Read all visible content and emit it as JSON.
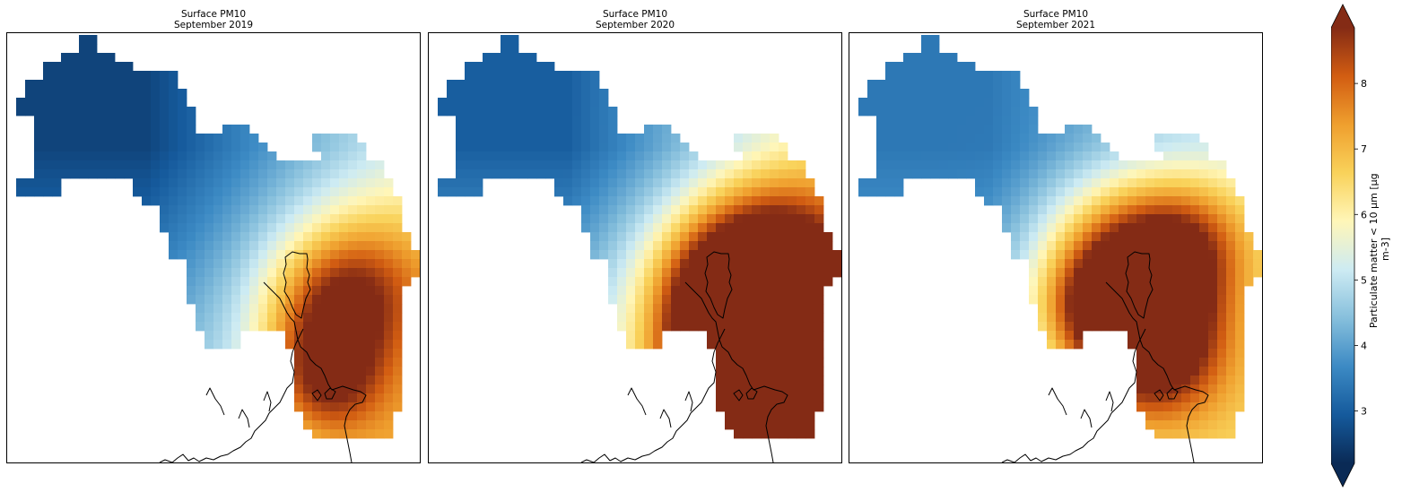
{
  "panels": [
    {
      "title": "Surface PM10",
      "subtitle": "September 2019"
    },
    {
      "title": "Surface PM10",
      "subtitle": "September 2020"
    },
    {
      "title": "Surface PM10",
      "subtitle": "September 2021"
    }
  ],
  "colorbar": {
    "label": "Particulate matter < 10 µm [µg m-3]",
    "vmin": 2.2,
    "vmax": 8.85,
    "ticks": [
      3,
      4,
      5,
      6,
      7,
      8
    ],
    "extend": "both",
    "colormap": "diverging blue-white-yellow-orange-brown",
    "colors": [
      "#0a2a55",
      "#155a9c",
      "#3c8ac4",
      "#86bfdc",
      "#cdebf3",
      "#fff6b8",
      "#f9d25a",
      "#ef9f2e",
      "#d25d12",
      "#842b15"
    ]
  }
}
